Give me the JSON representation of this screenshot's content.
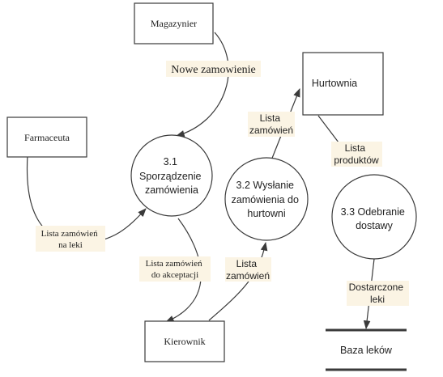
{
  "colors": {
    "line": "#3a3a3a",
    "label_bg": "#fbf4e4",
    "text": "#222222",
    "store_bar": "#3a3a3a"
  },
  "entities": {
    "magazynier": "Magazynier",
    "farmaceuta": "Farmaceuta",
    "hurtownia": "Hurtownia",
    "kierownik": "Kierownik"
  },
  "processes": {
    "p31": [
      "3.1",
      "Sporządzenie",
      "zamówienia"
    ],
    "p32": [
      "3.2 Wysłanie",
      "zamówienia do",
      "hurtowni"
    ],
    "p33": [
      "3.3 Odebranie",
      "dostawy"
    ]
  },
  "data_store": {
    "label": "Baza leków"
  },
  "flows": {
    "nowe_zamowienie": [
      "Nowe zamowienie"
    ],
    "lista_zamowien_na_leki": [
      "Lista zamówień",
      "na leki"
    ],
    "lista_zamowien_do_akceptacji": [
      "Lista zamówień",
      "do akceptacji"
    ],
    "lista_zamowien_kier": [
      "Lista",
      "zamówień"
    ],
    "lista_zamowien_hurt": [
      "Lista",
      "zamówień"
    ],
    "lista_produktow": [
      "Lista",
      "produktów"
    ],
    "dostarczone_leki": [
      "Dostarczone",
      "leki"
    ]
  }
}
